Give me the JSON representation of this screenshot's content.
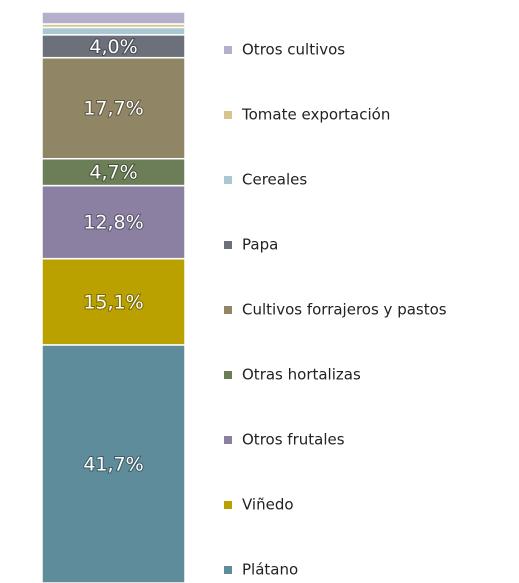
{
  "chart_data": {
    "type": "bar",
    "stacked": true,
    "ylim": [
      0,
      100
    ],
    "series": [
      {
        "name": "Plátano",
        "color": "#5e8c9b",
        "values": [
          41.7
        ],
        "value_labels": [
          "41,7%"
        ]
      },
      {
        "name": "Viñedo",
        "color": "#baa100",
        "values": [
          15.1
        ],
        "value_labels": [
          "15,1%"
        ]
      },
      {
        "name": "Otros frutales",
        "color": "#8b80a2",
        "values": [
          12.8
        ],
        "value_labels": [
          "12,8%"
        ]
      },
      {
        "name": "Otras hortalizas",
        "color": "#6c7e57",
        "values": [
          4.7
        ],
        "value_labels": [
          "4,7%"
        ]
      },
      {
        "name": "Cultivos forrajeros y pastos",
        "color": "#908666",
        "values": [
          17.7
        ],
        "value_labels": [
          "17,7%"
        ]
      },
      {
        "name": "Papa",
        "color": "#6c707b",
        "values": [
          4.0
        ],
        "value_labels": [
          "4,0%"
        ]
      },
      {
        "name": "Cereales",
        "color": "#a9c8d4",
        "values": [
          1.3
        ],
        "value_labels": [
          null
        ]
      },
      {
        "name": "Tomate exportación",
        "color": "#d6c48c",
        "values": [
          0.6
        ],
        "value_labels": [
          null
        ]
      },
      {
        "name": "Otros cultivos",
        "color": "#b4afca",
        "values": [
          2.1
        ],
        "value_labels": [
          null
        ]
      }
    ]
  }
}
